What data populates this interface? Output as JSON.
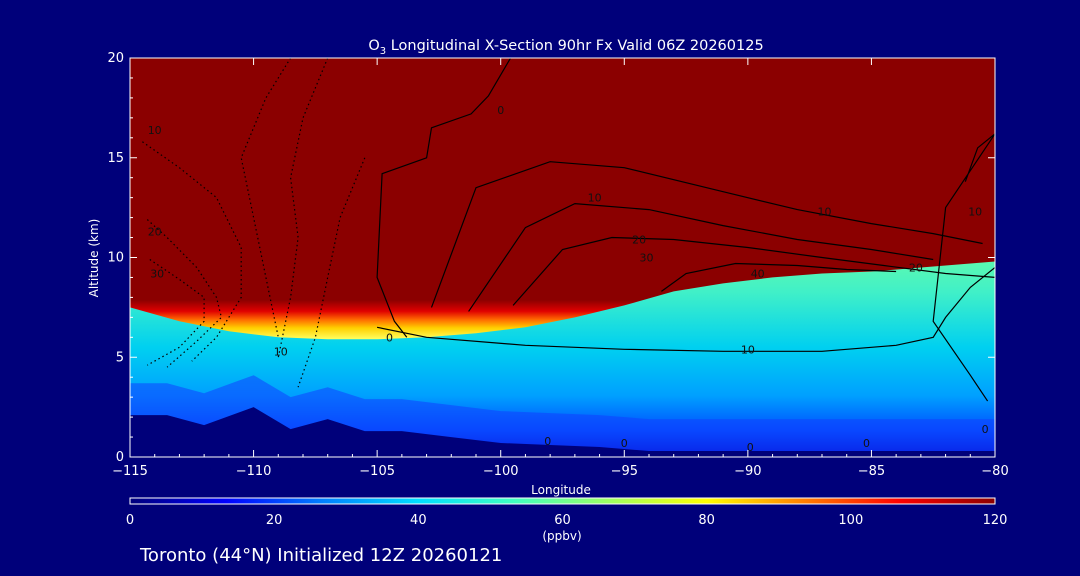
{
  "chart_data": {
    "type": "heatmap",
    "title": "O3 Longitudinal X-Section 90hr  Fx Valid 06Z 20260125",
    "title_parts": {
      "main": "O",
      "subscript": "3",
      "rest": " Longitudinal X-Section 90hr  Fx Valid 06Z 20260125"
    },
    "xlabel": "Longitude",
    "ylabel": "Altitude (km)",
    "xlim": [
      -115,
      -80
    ],
    "ylim": [
      0,
      20
    ],
    "x_ticks": [
      -115,
      -110,
      -105,
      -100,
      -95,
      -90,
      -85,
      -80
    ],
    "x_tick_labels": [
      "−115",
      "−110",
      "−105",
      "−100",
      "−95",
      "−90",
      "−85",
      "−80"
    ],
    "y_ticks": [
      0,
      5,
      10,
      15,
      20
    ],
    "y_tick_labels": [
      "0",
      "5",
      "10",
      "15",
      "20"
    ],
    "colorbar": {
      "min": 0,
      "max": 120,
      "ticks": [
        0,
        20,
        40,
        60,
        80,
        100,
        120
      ],
      "tick_labels": [
        "0",
        "20",
        "40",
        "60",
        "80",
        "100",
        "120"
      ],
      "unit": "(ppbv)",
      "colors": [
        "#00007a",
        "#0000ff",
        "#0080ff",
        "#00e0ff",
        "#40ffc0",
        "#a0ff60",
        "#ffff00",
        "#ff8000",
        "#ff0000",
        "#8b0000"
      ]
    },
    "tropopause_height_km": {
      "longitude": [
        -115,
        -113,
        -111,
        -109,
        -107,
        -105,
        -103,
        -101,
        -99,
        -97,
        -95,
        -93,
        -91,
        -89,
        -87,
        -85,
        -83,
        -81,
        -80
      ],
      "altitude": [
        8.4,
        7.7,
        7.2,
        6.9,
        6.8,
        6.8,
        6.9,
        7.1,
        7.4,
        7.9,
        8.5,
        9.2,
        9.6,
        9.9,
        10.1,
        10.2,
        10.4,
        10.6,
        10.7
      ]
    },
    "terrain_height_km": {
      "longitude": [
        -115,
        -113.5,
        -112,
        -110,
        -108.5,
        -107,
        -105.5,
        -104,
        -102,
        -100,
        -98,
        -96,
        -94,
        -92,
        -90,
        -88,
        -86,
        -84,
        -82,
        -80
      ],
      "altitude": [
        2.1,
        2.1,
        1.6,
        2.5,
        1.4,
        1.9,
        1.3,
        1.3,
        1.0,
        0.7,
        0.6,
        0.5,
        0.3,
        0.3,
        0.3,
        0.3,
        0.3,
        0.3,
        0.3,
        0.3
      ]
    },
    "contour_labels": [
      {
        "text": "10",
        "lon": -114.0,
        "alt": 16.2
      },
      {
        "text": "20",
        "lon": -114.0,
        "alt": 11.1
      },
      {
        "text": "30",
        "lon": -113.9,
        "alt": 9.0
      },
      {
        "text": "10",
        "lon": -108.9,
        "alt": 5.1
      },
      {
        "text": "0",
        "lon": -104.5,
        "alt": 5.8
      },
      {
        "text": "0",
        "lon": -100.0,
        "alt": 17.2
      },
      {
        "text": "10",
        "lon": -96.2,
        "alt": 12.8
      },
      {
        "text": "20",
        "lon": -94.4,
        "alt": 10.7
      },
      {
        "text": "30",
        "lon": -94.1,
        "alt": 9.8
      },
      {
        "text": "40",
        "lon": -89.6,
        "alt": 9.0
      },
      {
        "text": "10",
        "lon": -86.9,
        "alt": 12.1
      },
      {
        "text": "20",
        "lon": -83.2,
        "alt": 9.3
      },
      {
        "text": "10",
        "lon": -90.0,
        "alt": 5.2
      },
      {
        "text": "10",
        "lon": -80.8,
        "alt": 12.1
      },
      {
        "text": "0",
        "lon": -98.1,
        "alt": 0.6
      },
      {
        "text": "0",
        "lon": -95.0,
        "alt": 0.5
      },
      {
        "text": "0",
        "lon": -89.9,
        "alt": 0.3
      },
      {
        "text": "0",
        "lon": -85.2,
        "alt": 0.5
      },
      {
        "text": "0",
        "lon": -80.4,
        "alt": 1.2
      }
    ],
    "solid_contours": [
      {
        "name": "c0-west",
        "lon": [
          -99.6,
          -100.5,
          -101.2,
          -102.8,
          -103.0,
          -104.8,
          -105.0,
          -104.3,
          -103.8
        ],
        "alt": [
          20,
          18.1,
          17.2,
          16.5,
          15.0,
          14.2,
          9.0,
          6.8,
          6.0
        ]
      },
      {
        "name": "c10-loop",
        "lon": [
          -105.0,
          -103.0,
          -99.0,
          -95.0,
          -91.0,
          -87.0,
          -84.0,
          -82.5,
          -82.0,
          -81.0,
          -80.0
        ],
        "alt": [
          6.5,
          6.0,
          5.6,
          5.4,
          5.3,
          5.3,
          5.6,
          6.0,
          7.0,
          8.5,
          9.5
        ]
      },
      {
        "name": "c10-upper",
        "lon": [
          -102.8,
          -101.0,
          -98.0,
          -95.0,
          -91.0,
          -88.0,
          -85.0,
          -82.5,
          -80.5
        ],
        "alt": [
          7.5,
          13.5,
          14.8,
          14.5,
          13.3,
          12.4,
          11.7,
          11.2,
          10.7
        ]
      },
      {
        "name": "c20",
        "lon": [
          -101.3,
          -99.0,
          -97.0,
          -94.0,
          -91.0,
          -88.0,
          -85.0,
          -82.5
        ],
        "alt": [
          7.3,
          11.5,
          12.7,
          12.4,
          11.6,
          10.9,
          10.4,
          9.9
        ]
      },
      {
        "name": "c30",
        "lon": [
          -99.5,
          -97.5,
          -95.5,
          -93.0,
          -90.0,
          -87.0,
          -84.5,
          -82.0,
          -80.0
        ],
        "alt": [
          7.6,
          10.4,
          11.0,
          10.9,
          10.5,
          10.0,
          9.6,
          9.2,
          9.0
        ]
      },
      {
        "name": "c40",
        "lon": [
          -93.5,
          -92.5,
          -90.5,
          -88.0,
          -86.0,
          -84.0
        ],
        "alt": [
          8.3,
          9.2,
          9.7,
          9.6,
          9.4,
          9.3
        ]
      },
      {
        "name": "c0-east",
        "lon": [
          -81.2,
          -80.7,
          -80.0,
          -82.0,
          -82.5,
          -81.0,
          -80.3
        ],
        "alt": [
          13.8,
          15.5,
          16.2,
          12.5,
          6.8,
          4.1,
          2.8
        ]
      }
    ],
    "dotted_contours": [
      {
        "name": "d10",
        "lon": [
          -114.5,
          -113.0,
          -111.5,
          -110.5,
          -110.5,
          -111.5,
          -112.5
        ],
        "alt": [
          15.8,
          14.5,
          13.0,
          10.5,
          8.0,
          6.0,
          4.8
        ]
      },
      {
        "name": "d20",
        "lon": [
          -114.3,
          -113.5,
          -112.3,
          -111.5,
          -111.3,
          -112.3,
          -113.5
        ],
        "alt": [
          11.9,
          11.0,
          9.5,
          8.0,
          7.0,
          5.8,
          4.5
        ]
      },
      {
        "name": "d30",
        "lon": [
          -114.2,
          -113.0,
          -112.0,
          -112.0,
          -113.0,
          -114.3
        ],
        "alt": [
          9.9,
          8.9,
          8.0,
          6.8,
          5.5,
          4.6
        ]
      },
      {
        "name": "d-west-upper",
        "lon": [
          -108.5,
          -109.5,
          -110.5,
          -110.0,
          -109.5,
          -109.0
        ],
        "alt": [
          20.0,
          18.0,
          15.0,
          12.0,
          9.0,
          6.0
        ]
      },
      {
        "name": "d-west-mid",
        "lon": [
          -107.0,
          -108.0,
          -108.5,
          -108.2,
          -108.5,
          -109.0
        ],
        "alt": [
          20.0,
          17.0,
          14.0,
          11.0,
          8.0,
          5.0
        ]
      },
      {
        "name": "d-west-low",
        "lon": [
          -105.5,
          -106.5,
          -107.0,
          -107.5,
          -108.2
        ],
        "alt": [
          15.0,
          12.0,
          9.0,
          6.0,
          3.5
        ]
      }
    ]
  }
}
